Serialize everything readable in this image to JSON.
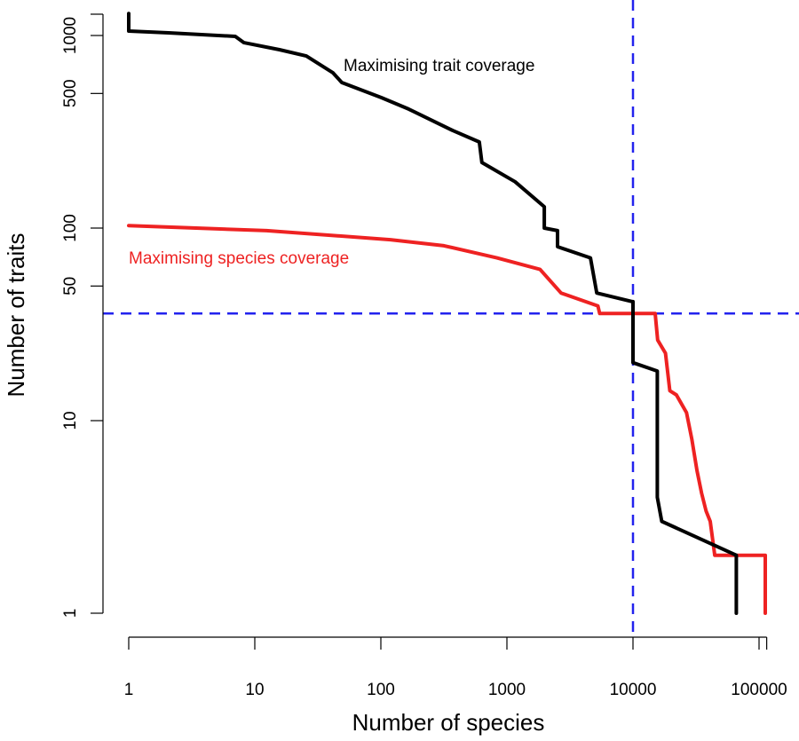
{
  "chart_data": {
    "type": "line",
    "title": "",
    "xlabel": "Number of species",
    "ylabel": "Number of traits",
    "xscale": "log",
    "yscale": "log",
    "xlim": [
      1,
      115000
    ],
    "ylim": [
      1,
      1300
    ],
    "grid": false,
    "x_ticks": [
      1,
      10,
      100,
      1000,
      10000,
      100000
    ],
    "x_tick_labels": [
      "1",
      "10",
      "100",
      "1000",
      "10000",
      "100000"
    ],
    "y_ticks": [
      1,
      10,
      50,
      100,
      500,
      1000
    ],
    "y_tick_labels": [
      "1",
      "10",
      "50",
      "100",
      "500",
      "1000"
    ],
    "reference_lines": {
      "vertical": {
        "x": 10000,
        "color": "#2222ee",
        "style": "dashed"
      },
      "horizontal": {
        "y": 36,
        "color": "#2222ee",
        "style": "dashed"
      }
    },
    "series": [
      {
        "name": "Maximising trait coverage",
        "color": "#000000",
        "label": "Maximising trait coverage",
        "points": [
          [
            1,
            1300
          ],
          [
            1,
            1055
          ],
          [
            2.07,
            1032
          ],
          [
            7.0,
            989
          ],
          [
            8.2,
            918
          ],
          [
            15.7,
            844
          ],
          [
            25.6,
            783
          ],
          [
            41.7,
            640
          ],
          [
            49,
            570
          ],
          [
            101,
            476
          ],
          [
            166,
            415
          ],
          [
            372,
            321
          ],
          [
            604,
            280
          ],
          [
            633,
            219
          ],
          [
            1160,
            174
          ],
          [
            1980,
            129
          ],
          [
            1980,
            100
          ],
          [
            2520,
            97
          ],
          [
            2520,
            80
          ],
          [
            4600,
            70
          ],
          [
            5160,
            46
          ],
          [
            9900,
            41.5
          ],
          [
            10000,
            41.5
          ],
          [
            10000,
            20
          ],
          [
            15600,
            18.1
          ],
          [
            15600,
            4.0
          ],
          [
            16900,
            3.0
          ],
          [
            66000,
            2
          ],
          [
            66000,
            1
          ]
        ]
      },
      {
        "name": "Maximising species coverage",
        "color": "#ee2222",
        "label": "Maximising species coverage",
        "points": [
          [
            1,
            103
          ],
          [
            12.4,
            97
          ],
          [
            119,
            87
          ],
          [
            316,
            81
          ],
          [
            832,
            70
          ],
          [
            1830,
            61
          ],
          [
            2690,
            46
          ],
          [
            5270,
            39.4
          ],
          [
            5440,
            36
          ],
          [
            15000,
            36
          ],
          [
            15700,
            26.2
          ],
          [
            18100,
            22.4
          ],
          [
            19600,
            14.3
          ],
          [
            22100,
            13.6
          ],
          [
            26600,
            11
          ],
          [
            29300,
            8.0
          ],
          [
            32200,
            5.5
          ],
          [
            35000,
            4.2
          ],
          [
            38000,
            3.4
          ],
          [
            41000,
            3.0
          ],
          [
            44500,
            2
          ],
          [
            112000,
            2
          ],
          [
            112000,
            1
          ]
        ]
      }
    ]
  }
}
